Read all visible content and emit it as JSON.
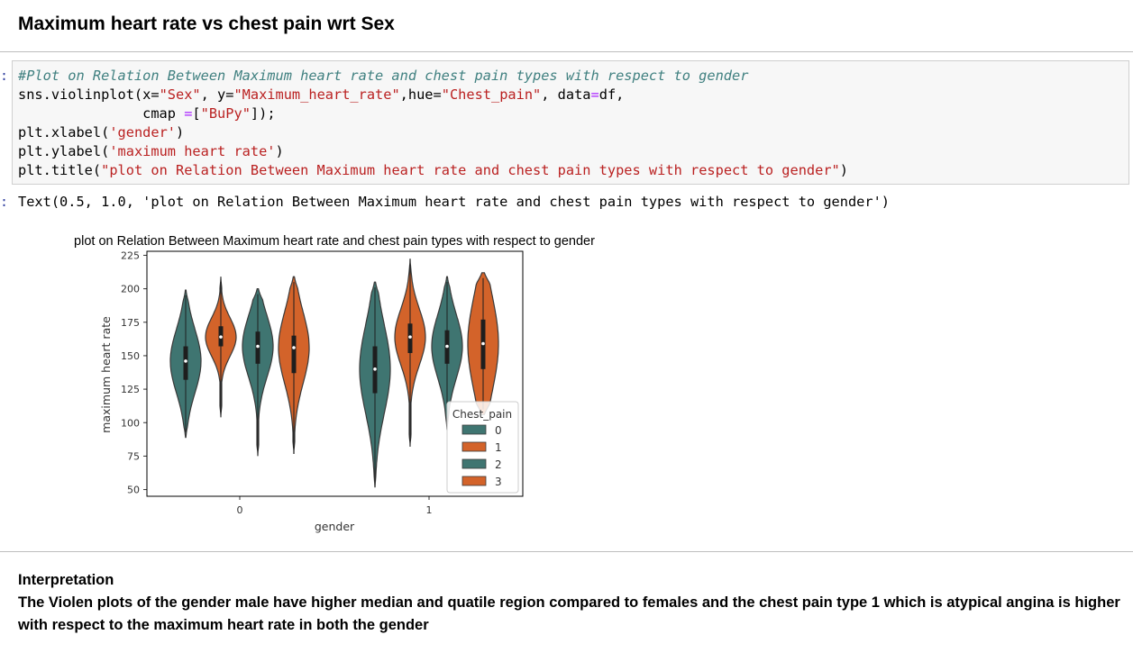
{
  "page": {
    "heading": "Maximum heart rate vs chest pain wrt Sex",
    "input_prompt": ":",
    "output_prompt": ":"
  },
  "code_lines": [
    {
      "parts": [
        {
          "t": "#Plot on Relation Between Maximum heart rate and chest pain types with respect to gender",
          "c": "cm"
        }
      ]
    },
    {
      "parts": [
        {
          "t": "sns.violinplot(x="
        },
        {
          "t": "\"Sex\"",
          "c": "st"
        },
        {
          "t": ", y="
        },
        {
          "t": "\"Maximum_heart_rate\"",
          "c": "st"
        },
        {
          "t": ",hue="
        },
        {
          "t": "\"Chest_pain\"",
          "c": "st"
        },
        {
          "t": ", data"
        },
        {
          "t": "=",
          "c": "op"
        },
        {
          "t": "df,"
        }
      ]
    },
    {
      "parts": [
        {
          "t": "               cmap "
        },
        {
          "t": "=",
          "c": "op"
        },
        {
          "t": "["
        },
        {
          "t": "\"BuPy\"",
          "c": "st"
        },
        {
          "t": "]);"
        }
      ]
    },
    {
      "parts": [
        {
          "t": "plt.xlabel("
        },
        {
          "t": "'gender'",
          "c": "st"
        },
        {
          "t": ")"
        }
      ]
    },
    {
      "parts": [
        {
          "t": "plt.ylabel("
        },
        {
          "t": "'maximum heart rate'",
          "c": "st"
        },
        {
          "t": ")"
        }
      ]
    },
    {
      "parts": [
        {
          "t": "plt.title("
        },
        {
          "t": "\"plot on Relation Between Maximum heart rate and chest pain types with respect to gender\"",
          "c": "st"
        },
        {
          "t": ")"
        }
      ]
    }
  ],
  "output_text": "Text(0.5, 1.0, 'plot on Relation Between Maximum heart rate and chest pain types with respect to gender')",
  "chart_data": {
    "type": "violin",
    "title": "plot on Relation Between Maximum heart rate and chest pain types with respect to gender",
    "xlabel": "gender",
    "ylabel": "maximum heart rate",
    "categories": [
      "0",
      "1"
    ],
    "ylim": [
      45,
      228
    ],
    "yticks": [
      50,
      75,
      100,
      125,
      150,
      175,
      200,
      225
    ],
    "legend": {
      "title": "Chest_pain",
      "entries": [
        "0",
        "1",
        "2",
        "3"
      ],
      "placement": "lower right"
    },
    "colors": {
      "0": "#3f7571",
      "1": "#d3632a",
      "2": "#3f7571",
      "3": "#d3632a"
    },
    "series": [
      {
        "name": "0",
        "values": [
          {
            "category": "0",
            "min": 89,
            "max": 199,
            "q1": 132,
            "median": 146,
            "q3": 157
          },
          {
            "category": "1",
            "min": 52,
            "max": 205,
            "q1": 122,
            "median": 140,
            "q3": 157
          }
        ]
      },
      {
        "name": "1",
        "values": [
          {
            "category": "0",
            "min": 104,
            "max": 209,
            "q1": 157,
            "median": 164,
            "q3": 172
          },
          {
            "category": "1",
            "min": 82,
            "max": 222,
            "q1": 152,
            "median": 164,
            "q3": 174
          }
        ]
      },
      {
        "name": "2",
        "values": [
          {
            "category": "0",
            "min": 75,
            "max": 200,
            "q1": 144,
            "median": 157,
            "q3": 168
          },
          {
            "category": "1",
            "min": 95,
            "max": 209,
            "q1": 144,
            "median": 157,
            "q3": 169
          }
        ]
      },
      {
        "name": "3",
        "values": [
          {
            "category": "0",
            "min": 77,
            "max": 209,
            "q1": 137,
            "median": 156,
            "q3": 165
          },
          {
            "category": "1",
            "min": 106,
            "max": 212,
            "q1": 140,
            "median": 159,
            "q3": 177
          }
        ]
      }
    ]
  },
  "interpretation": {
    "title": "Interpretation",
    "body": "The Violen plots of the gender male have higher median and quatile region compared to females and the chest pain type 1 which is atypical angina is higher with respect to the maximum heart rate in both the gender"
  }
}
